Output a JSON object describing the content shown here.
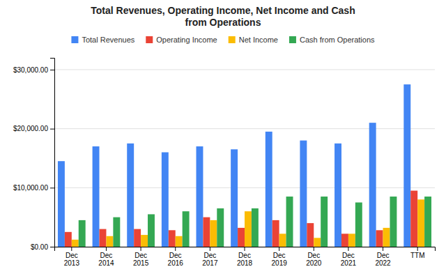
{
  "chart_data": {
    "type": "bar",
    "title": "Total Revenues, Operating Income, Net Income and Cash\nfrom Operations",
    "categories": [
      "Dec\n2013",
      "Dec\n2014",
      "Dec\n2015",
      "Dec\n2016",
      "Dec\n2017",
      "Dec\n2018",
      "Dec\n2019",
      "Dec\n2020",
      "Dec\n2021",
      "Dec\n2022",
      "TTM"
    ],
    "series": [
      {
        "name": "Total Revenues",
        "color": "#4285F4",
        "values": [
          14500,
          17000,
          17500,
          16000,
          17000,
          16500,
          19500,
          18000,
          17500,
          21000,
          27500
        ]
      },
      {
        "name": "Operating Income",
        "color": "#EA4335",
        "values": [
          2500,
          3000,
          3000,
          2800,
          5000,
          3200,
          4500,
          4000,
          2200,
          2800,
          9500
        ]
      },
      {
        "name": "Net Income",
        "color": "#FBBC04",
        "values": [
          1200,
          1800,
          2000,
          1800,
          4500,
          6000,
          2200,
          1500,
          2200,
          3200,
          8000
        ]
      },
      {
        "name": "Cash from Operations",
        "color": "#34A853",
        "values": [
          4500,
          5000,
          5500,
          6000,
          6500,
          6500,
          8500,
          8500,
          7500,
          8500,
          8500
        ]
      }
    ],
    "ylim": [
      0,
      32000
    ],
    "yticks": [
      {
        "value": 0,
        "label": "$0.00"
      },
      {
        "value": 10000,
        "label": "$10,000.00"
      },
      {
        "value": 20000,
        "label": "$20,000.00"
      },
      {
        "value": 30000,
        "label": "$30,000.00"
      }
    ],
    "grid": true,
    "legend": "top"
  }
}
